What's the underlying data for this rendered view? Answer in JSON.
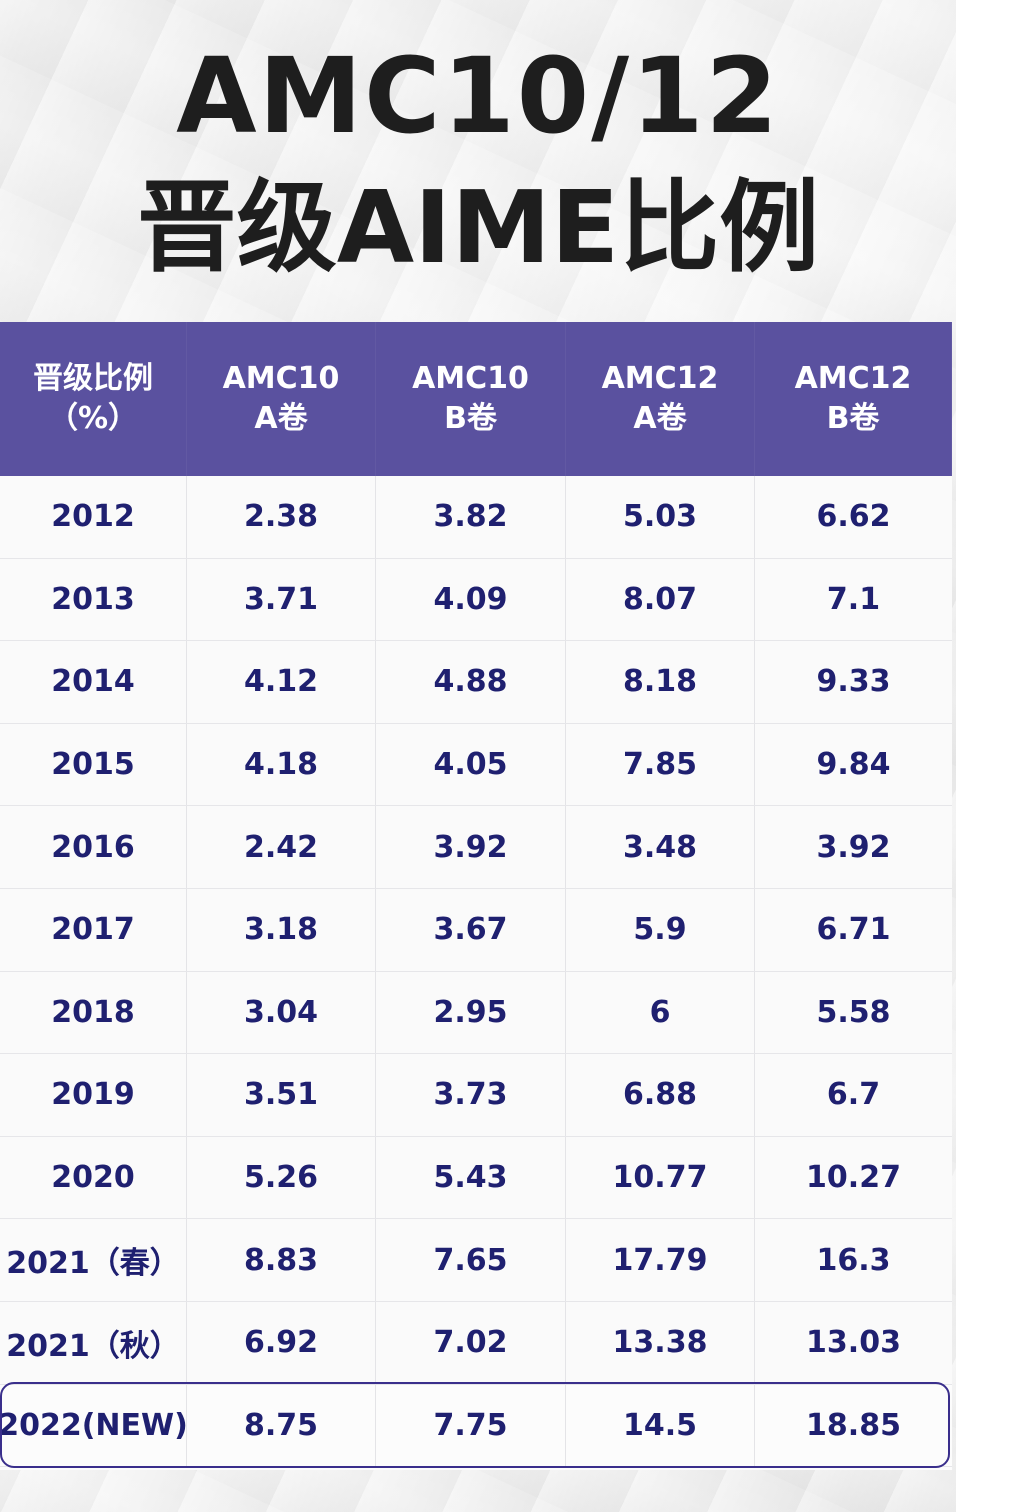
{
  "title": {
    "line1": "AMC10/12",
    "line2": "晋级AIME比例"
  },
  "colors": {
    "header_bg": "#5a519f",
    "cell_text": "#1f2070",
    "title_text": "#1e1e1e",
    "highlight_border": "#3a2f8c"
  },
  "table": {
    "headers": [
      {
        "line1": "晋级比例",
        "line2": "（%）"
      },
      {
        "line1": "AMC10",
        "line2": "A卷"
      },
      {
        "line1": "AMC10",
        "line2": "B卷"
      },
      {
        "line1": "AMC12",
        "line2": "A卷"
      },
      {
        "line1": "AMC12",
        "line2": "B卷"
      }
    ],
    "rows": [
      [
        "2012",
        "2.38",
        "3.82",
        "5.03",
        "6.62"
      ],
      [
        "2013",
        "3.71",
        "4.09",
        "8.07",
        "7.1"
      ],
      [
        "2014",
        "4.12",
        "4.88",
        "8.18",
        "9.33"
      ],
      [
        "2015",
        "4.18",
        "4.05",
        "7.85",
        "9.84"
      ],
      [
        "2016",
        "2.42",
        "3.92",
        "3.48",
        "3.92"
      ],
      [
        "2017",
        "3.18",
        "3.67",
        "5.9",
        "6.71"
      ],
      [
        "2018",
        "3.04",
        "2.95",
        "6",
        "5.58"
      ],
      [
        "2019",
        "3.51",
        "3.73",
        "6.88",
        "6.7"
      ],
      [
        "2020",
        "5.26",
        "5.43",
        "10.77",
        "10.27"
      ],
      [
        "2021（春）",
        "8.83",
        "7.65",
        "17.79",
        "16.3"
      ],
      [
        "2021（秋）",
        "6.92",
        "7.02",
        "13.38",
        "13.03"
      ],
      [
        "2022(NEW)",
        "8.75",
        "7.75",
        "14.5",
        "18.85"
      ]
    ],
    "highlighted_row": "2022(NEW)"
  }
}
